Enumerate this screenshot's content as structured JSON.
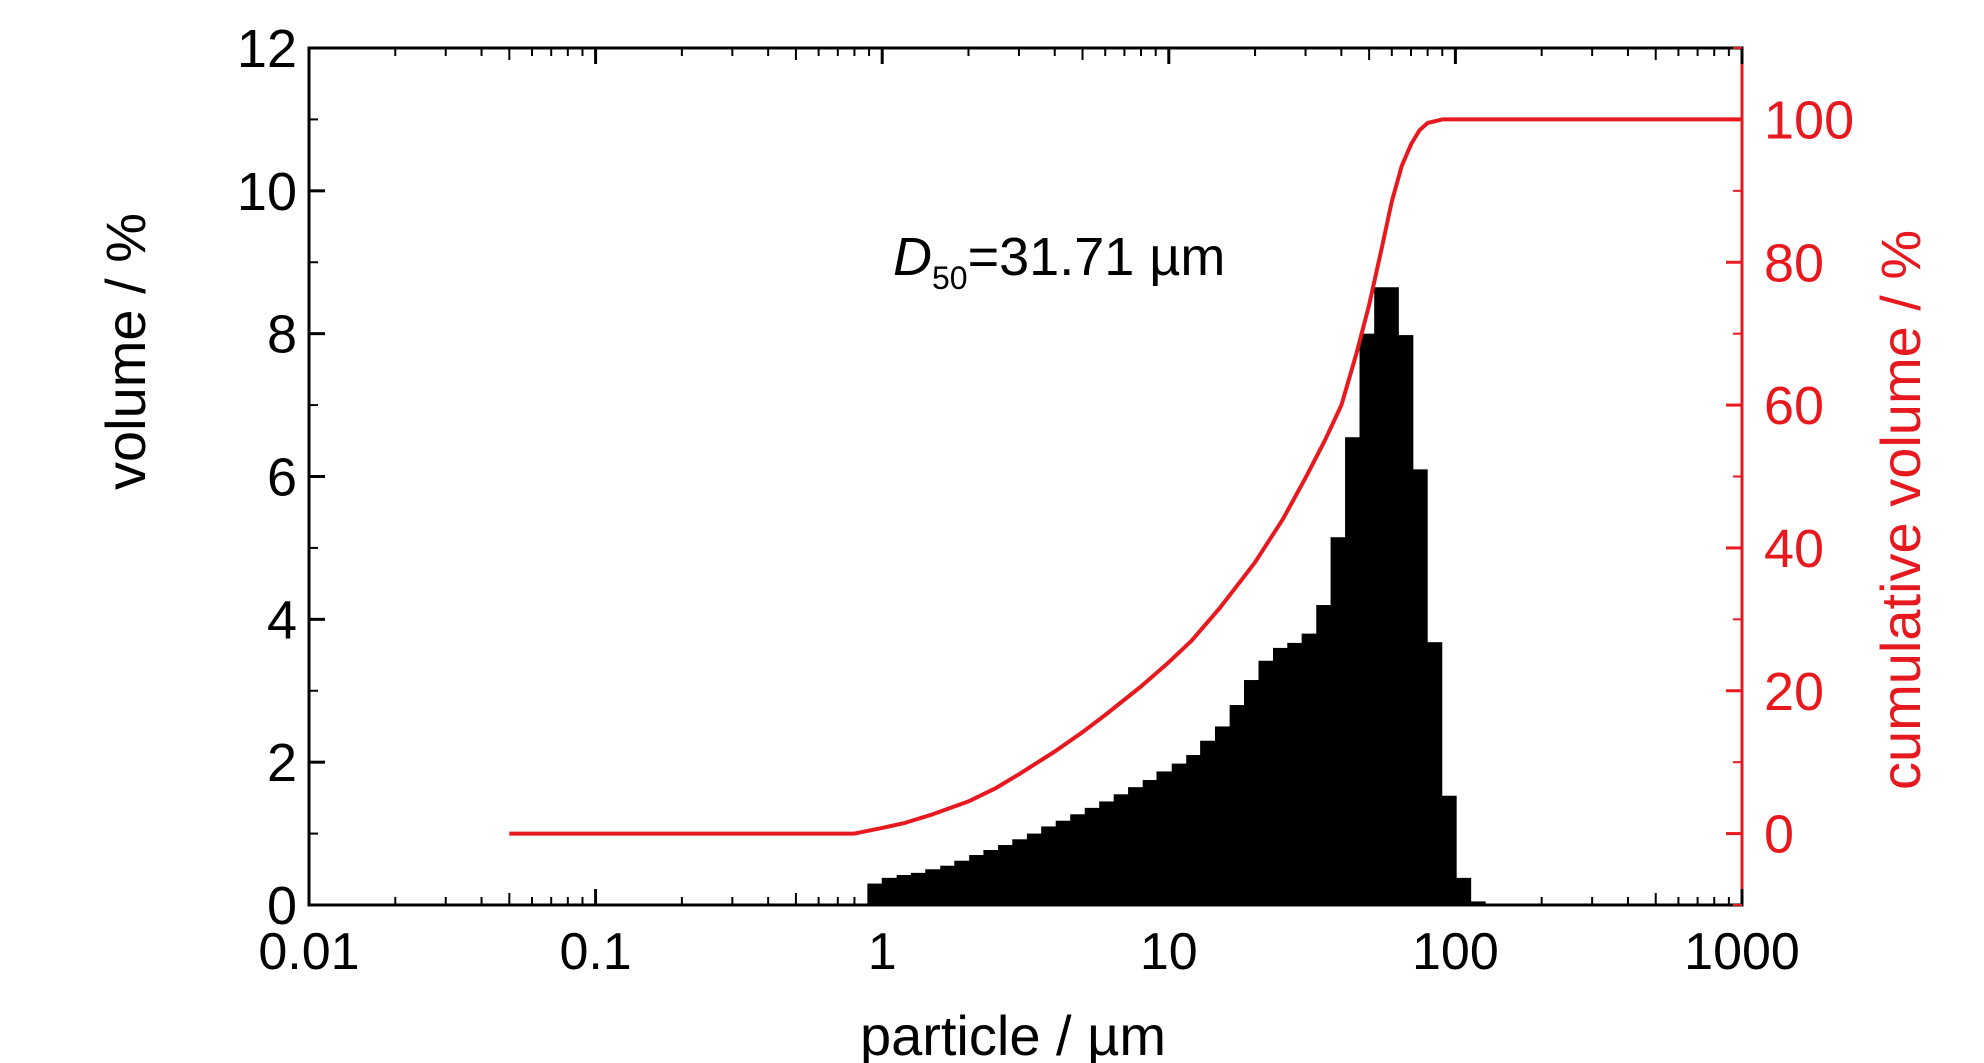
{
  "chart_data": {
    "type": "bar",
    "annotation": {
      "symbol": "D",
      "subscript": "50",
      "text": "=31.71 µm"
    },
    "xlabel": "particle / µm",
    "ylabel": "volume / %",
    "y2label": "cumulative volume / %",
    "xscale": "log",
    "xlim": [
      0.01,
      1000
    ],
    "ylim": [
      0,
      12
    ],
    "y2lim": [
      -10,
      110
    ],
    "xticks": [
      0.01,
      0.1,
      1,
      10,
      100,
      1000
    ],
    "xtick_labels": [
      "0.01",
      "0.1",
      "1",
      "10",
      "100",
      "1000"
    ],
    "yticks": [
      0,
      2,
      4,
      6,
      8,
      10,
      12
    ],
    "ytick_labels": [
      "0",
      "2",
      "4",
      "6",
      "8",
      "10",
      "12"
    ],
    "y2ticks": [
      0,
      20,
      40,
      60,
      80,
      100
    ],
    "y2tick_labels": [
      "0",
      "20",
      "40",
      "60",
      "80",
      "100"
    ],
    "bar_color": "#000000",
    "line_color": "#e8191e",
    "grid": false,
    "series": [
      {
        "type": "bar",
        "axis": "left",
        "x": [
          0.98,
          1.1,
          1.24,
          1.39,
          1.56,
          1.76,
          1.97,
          2.22,
          2.49,
          2.8,
          3.14,
          3.53,
          3.96,
          4.45,
          5.0,
          5.62,
          6.31,
          7.09,
          7.96,
          8.95,
          10.0,
          11.3,
          12.7,
          14.2,
          16.0,
          18.0,
          20.2,
          22.7,
          25.5,
          28.6,
          32.1,
          36.1,
          40.5,
          45.5,
          51.1,
          57.5,
          64.6,
          72.5,
          81.5,
          91.5
        ],
        "values": [
          0.3,
          0.38,
          0.42,
          0.45,
          0.5,
          0.55,
          0.62,
          0.7,
          0.77,
          0.84,
          0.92,
          1.0,
          1.1,
          1.18,
          1.27,
          1.36,
          1.45,
          1.55,
          1.65,
          1.75,
          1.87,
          1.98,
          2.1,
          2.3,
          2.5,
          2.8,
          3.15,
          3.42,
          3.6,
          3.67,
          3.8,
          4.2,
          5.15,
          6.55,
          8.0,
          8.65,
          7.98,
          6.1,
          3.68,
          1.53
        ]
      },
      {
        "type": "bar",
        "axis": "left",
        "x": [
          102.8,
          115.5
        ],
        "values": [
          0.38,
          0.05
        ]
      },
      {
        "type": "line",
        "axis": "right",
        "x": [
          0.05,
          0.8,
          1.0,
          1.2,
          1.5,
          2.0,
          2.5,
          3.0,
          4.0,
          5.0,
          6.0,
          8.0,
          10.0,
          12.0,
          15.0,
          18.0,
          20.0,
          25.0,
          30.0,
          35.0,
          40.0,
          45.0,
          50.0,
          55.0,
          60.0,
          65.0,
          70.0,
          75.0,
          80.0,
          90.0,
          100.0,
          1000.0
        ],
        "y": [
          0,
          0,
          0.8,
          1.5,
          2.7,
          4.5,
          6.4,
          8.3,
          11.5,
          14.2,
          16.6,
          20.6,
          24.0,
          27.0,
          31.5,
          35.6,
          38.0,
          44.0,
          49.8,
          55.0,
          60.0,
          67.0,
          74.0,
          81.5,
          88.5,
          93.5,
          96.5,
          98.5,
          99.5,
          100,
          100,
          100
        ]
      }
    ]
  }
}
